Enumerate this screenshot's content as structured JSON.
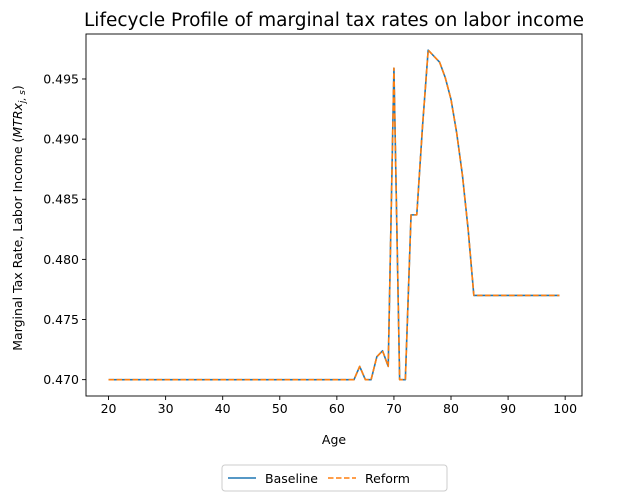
{
  "chart_data": {
    "type": "line",
    "title": "Lifecycle Profile of marginal tax rates on labor income",
    "xlabel": "Age",
    "ylabel_prefix": "Marginal Tax Rate, Labor Income (",
    "ylabel_math_main": "MTRx",
    "ylabel_math_sub": "j, s",
    "ylabel_suffix": ")",
    "xlim": [
      16.05,
      102.95
    ],
    "ylim": [
      0.46864,
      0.49874
    ],
    "xticks": [
      20,
      30,
      40,
      50,
      60,
      70,
      80,
      90,
      100
    ],
    "xtick_labels": [
      "20",
      "30",
      "40",
      "50",
      "60",
      "70",
      "80",
      "90",
      "100"
    ],
    "yticks": [
      0.47,
      0.475,
      0.48,
      0.485,
      0.49,
      0.495
    ],
    "ytick_labels": [
      "0.470",
      "0.475",
      "0.480",
      "0.485",
      "0.490",
      "0.495"
    ],
    "grid": false,
    "legend_position": "bottom-center-outside",
    "x": [
      20,
      21,
      22,
      23,
      24,
      25,
      26,
      27,
      28,
      29,
      30,
      31,
      32,
      33,
      34,
      35,
      36,
      37,
      38,
      39,
      40,
      41,
      42,
      43,
      44,
      45,
      46,
      47,
      48,
      49,
      50,
      51,
      52,
      53,
      54,
      55,
      56,
      57,
      58,
      59,
      60,
      61,
      62,
      63,
      64,
      65,
      66,
      67,
      68,
      69,
      70,
      71,
      72,
      73,
      74,
      75,
      76,
      77,
      78,
      79,
      80,
      81,
      82,
      83,
      84,
      85,
      86,
      87,
      88,
      89,
      90,
      91,
      92,
      93,
      94,
      95,
      96,
      97,
      98,
      99
    ],
    "series": [
      {
        "name": "Baseline",
        "color": "#1f77b4",
        "style": "solid",
        "values": [
          0.47,
          0.47,
          0.47,
          0.47,
          0.47,
          0.47,
          0.47,
          0.47,
          0.47,
          0.47,
          0.47,
          0.47,
          0.47,
          0.47,
          0.47,
          0.47,
          0.47,
          0.47,
          0.47,
          0.47,
          0.47,
          0.47,
          0.47,
          0.47,
          0.47,
          0.47,
          0.47,
          0.47,
          0.47,
          0.47,
          0.47,
          0.47,
          0.47,
          0.47,
          0.47,
          0.47,
          0.47,
          0.47,
          0.47,
          0.47,
          0.47,
          0.47,
          0.47,
          0.47,
          0.4711,
          0.47,
          0.47,
          0.4719,
          0.4724,
          0.4711,
          0.4959,
          0.47,
          0.47,
          0.4837,
          0.4837,
          0.491,
          0.4974,
          0.4969,
          0.4964,
          0.4951,
          0.4933,
          0.4905,
          0.487,
          0.4825,
          0.477,
          0.477,
          0.477,
          0.477,
          0.477,
          0.477,
          0.477,
          0.477,
          0.477,
          0.477,
          0.477,
          0.477,
          0.477,
          0.477,
          0.477,
          0.477
        ]
      },
      {
        "name": "Reform",
        "color": "#ff7f0e",
        "style": "dashed",
        "values": [
          0.47,
          0.47,
          0.47,
          0.47,
          0.47,
          0.47,
          0.47,
          0.47,
          0.47,
          0.47,
          0.47,
          0.47,
          0.47,
          0.47,
          0.47,
          0.47,
          0.47,
          0.47,
          0.47,
          0.47,
          0.47,
          0.47,
          0.47,
          0.47,
          0.47,
          0.47,
          0.47,
          0.47,
          0.47,
          0.47,
          0.47,
          0.47,
          0.47,
          0.47,
          0.47,
          0.47,
          0.47,
          0.47,
          0.47,
          0.47,
          0.47,
          0.47,
          0.47,
          0.47,
          0.4711,
          0.47,
          0.47,
          0.4719,
          0.4724,
          0.4711,
          0.4959,
          0.47,
          0.47,
          0.4837,
          0.4837,
          0.491,
          0.4974,
          0.4969,
          0.4964,
          0.4951,
          0.4933,
          0.4905,
          0.487,
          0.4825,
          0.477,
          0.477,
          0.477,
          0.477,
          0.477,
          0.477,
          0.477,
          0.477,
          0.477,
          0.477,
          0.477,
          0.477,
          0.477,
          0.477,
          0.477,
          0.477
        ]
      }
    ]
  }
}
